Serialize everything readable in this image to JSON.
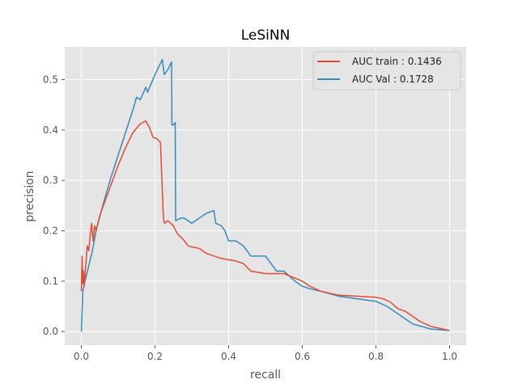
{
  "chart_data": {
    "type": "line",
    "title": "LeSiNN",
    "xlabel": "recall",
    "ylabel": "precision",
    "xlim": [
      -0.045,
      1.045
    ],
    "ylim": [
      -0.027,
      0.565
    ],
    "xticks": [
      0.0,
      0.2,
      0.4,
      0.6,
      0.8,
      1.0
    ],
    "xtick_labels": [
      "0.0",
      "0.2",
      "0.4",
      "0.6",
      "0.8",
      "1.0"
    ],
    "yticks": [
      0.0,
      0.1,
      0.2,
      0.3,
      0.4,
      0.5
    ],
    "ytick_labels": [
      "0.0",
      "0.1",
      "0.2",
      "0.3",
      "0.4",
      "0.5"
    ],
    "grid": true,
    "legend_position": "top-right",
    "background_color": "#e5e5e5",
    "series": [
      {
        "name": "AUC train : 0.1436",
        "color": "#e24a33",
        "x": [
          0.0,
          0.002,
          0.004,
          0.006,
          0.008,
          0.012,
          0.016,
          0.02,
          0.024,
          0.028,
          0.032,
          0.036,
          0.04,
          0.05,
          0.06,
          0.08,
          0.1,
          0.12,
          0.14,
          0.16,
          0.175,
          0.185,
          0.195,
          0.205,
          0.215,
          0.222,
          0.224,
          0.226,
          0.235,
          0.25,
          0.26,
          0.28,
          0.29,
          0.3,
          0.32,
          0.34,
          0.36,
          0.38,
          0.42,
          0.44,
          0.46,
          0.5,
          0.55,
          0.6,
          0.62,
          0.65,
          0.68,
          0.7,
          0.75,
          0.8,
          0.82,
          0.84,
          0.86,
          0.88,
          0.9,
          0.92,
          0.95,
          1.0
        ],
        "y": [
          0.08,
          0.15,
          0.095,
          0.12,
          0.09,
          0.13,
          0.17,
          0.16,
          0.19,
          0.215,
          0.18,
          0.21,
          0.2,
          0.23,
          0.25,
          0.29,
          0.33,
          0.365,
          0.395,
          0.412,
          0.418,
          0.405,
          0.385,
          0.383,
          0.375,
          0.24,
          0.22,
          0.215,
          0.22,
          0.21,
          0.195,
          0.18,
          0.17,
          0.168,
          0.165,
          0.155,
          0.15,
          0.145,
          0.14,
          0.135,
          0.12,
          0.115,
          0.115,
          0.1,
          0.09,
          0.08,
          0.075,
          0.072,
          0.07,
          0.068,
          0.065,
          0.058,
          0.045,
          0.04,
          0.03,
          0.02,
          0.01,
          0.002
        ]
      },
      {
        "name": "AUC Val : 0.1728",
        "color": "#348abd",
        "x": [
          0.0,
          0.004,
          0.01,
          0.02,
          0.03,
          0.04,
          0.06,
          0.08,
          0.1,
          0.12,
          0.14,
          0.15,
          0.16,
          0.175,
          0.18,
          0.2,
          0.22,
          0.225,
          0.235,
          0.245,
          0.246,
          0.25,
          0.255,
          0.256,
          0.27,
          0.28,
          0.3,
          0.32,
          0.34,
          0.36,
          0.365,
          0.38,
          0.39,
          0.4,
          0.42,
          0.44,
          0.46,
          0.5,
          0.52,
          0.53,
          0.55,
          0.58,
          0.6,
          0.62,
          0.65,
          0.7,
          0.75,
          0.8,
          0.83,
          0.85,
          0.88,
          0.9,
          0.95,
          1.0
        ],
        "y": [
          0.0,
          0.08,
          0.1,
          0.13,
          0.16,
          0.2,
          0.255,
          0.305,
          0.35,
          0.395,
          0.44,
          0.465,
          0.46,
          0.485,
          0.475,
          0.51,
          0.54,
          0.51,
          0.52,
          0.535,
          0.41,
          0.41,
          0.415,
          0.22,
          0.225,
          0.225,
          0.215,
          0.225,
          0.235,
          0.24,
          0.215,
          0.21,
          0.2,
          0.18,
          0.18,
          0.17,
          0.15,
          0.15,
          0.13,
          0.12,
          0.12,
          0.1,
          0.09,
          0.085,
          0.08,
          0.07,
          0.065,
          0.06,
          0.05,
          0.04,
          0.025,
          0.015,
          0.005,
          0.002
        ]
      }
    ]
  }
}
